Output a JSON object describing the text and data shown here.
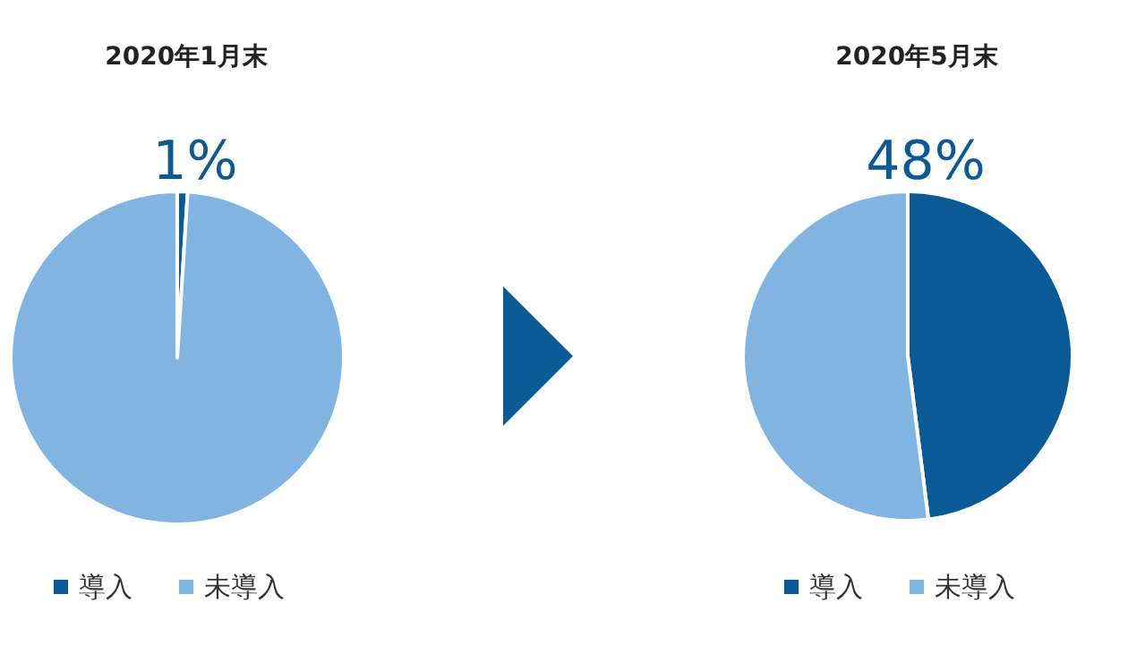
{
  "chart_data": [
    {
      "type": "pie",
      "title": "2020年1月末",
      "categories": [
        "導入",
        "未導入"
      ],
      "values": [
        1,
        99
      ],
      "colors": [
        "#0a5a96",
        "#82b4e1"
      ],
      "value_labels": [
        "1%",
        null
      ],
      "legend": "bottom"
    },
    {
      "type": "pie",
      "title": "2020年5月末",
      "categories": [
        "導入",
        "未導入"
      ],
      "values": [
        48,
        52
      ],
      "colors": [
        "#0a5a96",
        "#82b4e1"
      ],
      "value_labels": [
        "48%",
        null
      ],
      "legend": "bottom"
    }
  ]
}
